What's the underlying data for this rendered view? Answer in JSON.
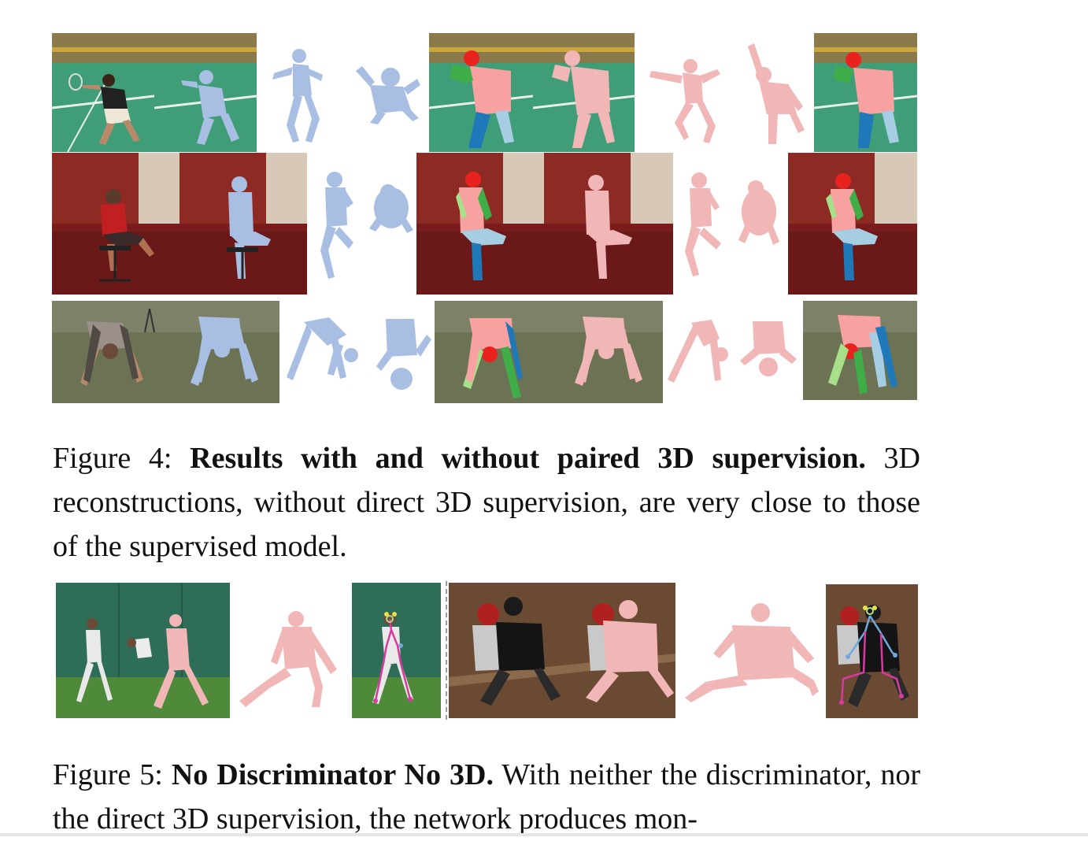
{
  "figure4": {
    "rows": [
      {
        "scene": "badminton court",
        "panels": [
          {
            "kind": "photo",
            "name": "input-image"
          },
          {
            "kind": "photo",
            "name": "mesh-overlay-blue"
          },
          {
            "kind": "mesh",
            "name": "mesh-side-view-blue"
          },
          {
            "kind": "mesh",
            "name": "mesh-top-view-blue"
          },
          {
            "kind": "photo",
            "name": "part-segmentation"
          },
          {
            "kind": "photo",
            "name": "mesh-overlay-pink"
          },
          {
            "kind": "mesh",
            "name": "mesh-side-view-pink"
          },
          {
            "kind": "mesh",
            "name": "mesh-top-view-pink"
          },
          {
            "kind": "photo",
            "name": "part-segmentation"
          }
        ]
      },
      {
        "scene": "seated person on chair",
        "panels": [
          {
            "kind": "photo",
            "name": "input-image"
          },
          {
            "kind": "photo",
            "name": "mesh-overlay-blue"
          },
          {
            "kind": "mesh",
            "name": "mesh-side-view-blue"
          },
          {
            "kind": "mesh",
            "name": "mesh-top-view-blue"
          },
          {
            "kind": "photo",
            "name": "part-segmentation"
          },
          {
            "kind": "photo",
            "name": "mesh-overlay-pink"
          },
          {
            "kind": "mesh",
            "name": "mesh-side-view-pink"
          },
          {
            "kind": "mesh",
            "name": "mesh-top-view-pink"
          },
          {
            "kind": "photo",
            "name": "part-segmentation"
          }
        ]
      },
      {
        "scene": "person bending on grass",
        "panels": [
          {
            "kind": "photo",
            "name": "input-image"
          },
          {
            "kind": "photo",
            "name": "mesh-overlay-blue"
          },
          {
            "kind": "mesh",
            "name": "mesh-side-view-blue"
          },
          {
            "kind": "mesh",
            "name": "mesh-top-view-blue"
          },
          {
            "kind": "photo",
            "name": "part-segmentation"
          },
          {
            "kind": "photo",
            "name": "mesh-overlay-pink"
          },
          {
            "kind": "mesh",
            "name": "mesh-side-view-pink"
          },
          {
            "kind": "mesh",
            "name": "mesh-top-view-pink"
          },
          {
            "kind": "photo",
            "name": "part-segmentation"
          }
        ]
      }
    ],
    "caption": {
      "label": "Figure 4:",
      "title": "Results with and without paired 3D supervision.",
      "body": "3D reconstructions, without direct 3D supervision, are very close to those of the supervised model."
    }
  },
  "figure5": {
    "caption": {
      "label": "Figure 5:",
      "title": "No Discriminator No 3D.",
      "body": "With neither the discriminator, nor the direct 3D supervision, the network produces mon-"
    }
  },
  "colors": {
    "mesh_blue": "#a8bfe3",
    "mesh_pink": "#f1b6b6",
    "part_head": "#e8231f",
    "part_torso": "#f7a1a1",
    "part_arm_green": "#3fae48",
    "part_arm_light_green": "#a8e08a",
    "part_leg_blue": "#1f78b8",
    "part_leg_light_blue": "#a6cee3",
    "court_green": "#3f9d78",
    "wall_red": "#7a1c1c",
    "grass": "#6c7355",
    "baseball_dirt": "#6a4a32"
  }
}
